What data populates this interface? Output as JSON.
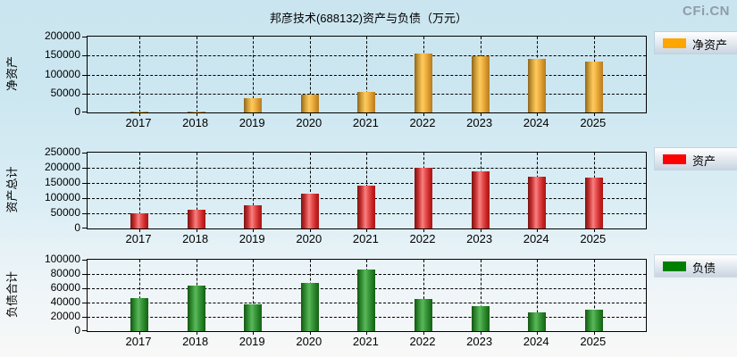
{
  "page": {
    "title": "邦彦技术(688132)资产与负债（万元）",
    "logo": "CFi.CN",
    "unit": "万元"
  },
  "chart_data": [
    {
      "type": "bar",
      "axis_label": "净资产",
      "legend": "净资产",
      "color": "#FFA500",
      "categories": [
        "2017",
        "2018",
        "2019",
        "2020",
        "2021",
        "2022",
        "2023",
        "2024",
        "2025"
      ],
      "values": [
        2300,
        2000,
        38000,
        46500,
        55000,
        155500,
        148500,
        141500,
        134500
      ],
      "ylim": [
        0,
        200000
      ],
      "yticks": [
        0,
        50000,
        100000,
        150000,
        200000
      ],
      "grid": true,
      "legend_position": "right"
    },
    {
      "type": "bar",
      "axis_label": "资产总计",
      "legend": "资产",
      "color": "#FF0000",
      "categories": [
        "2017",
        "2018",
        "2019",
        "2020",
        "2021",
        "2022",
        "2023",
        "2024",
        "2025"
      ],
      "values": [
        50500,
        62500,
        77000,
        114000,
        141000,
        201000,
        189000,
        171000,
        167000
      ],
      "ylim": [
        0,
        250000
      ],
      "yticks": [
        0,
        50000,
        100000,
        150000,
        200000,
        250000
      ],
      "grid": true,
      "legend_position": "right"
    },
    {
      "type": "bar",
      "axis_label": "负债合计",
      "legend": "负债",
      "color": "#008000",
      "categories": [
        "2017",
        "2018",
        "2019",
        "2020",
        "2021",
        "2022",
        "2023",
        "2024",
        "2025"
      ],
      "values": [
        46500,
        63500,
        37500,
        68000,
        86000,
        44500,
        35500,
        26500,
        30500
      ],
      "ylim": [
        0,
        100000
      ],
      "yticks": [
        0,
        20000,
        40000,
        60000,
        80000,
        100000
      ],
      "grid": true,
      "legend_position": "right"
    }
  ],
  "layout": {
    "chart_tops": [
      40,
      170,
      290
    ],
    "plot_heights": [
      85,
      85,
      80
    ]
  }
}
